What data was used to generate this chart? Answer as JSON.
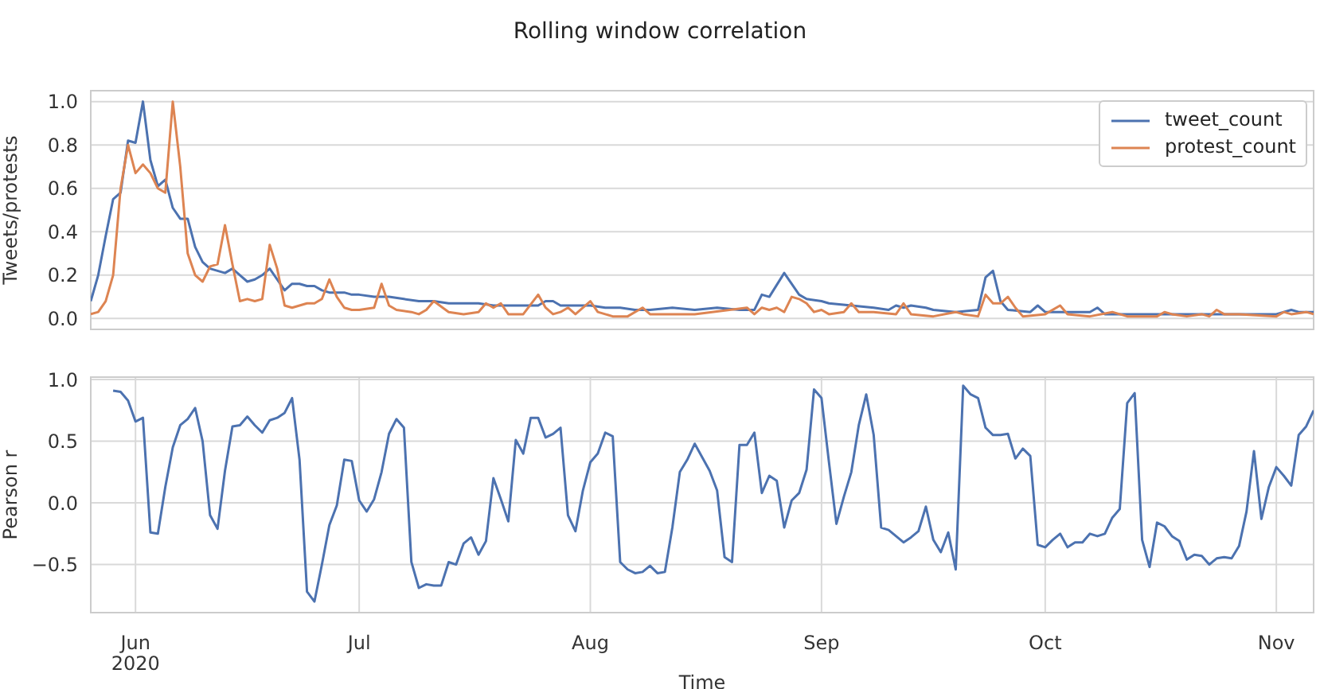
{
  "chart_data": [
    {
      "type": "line",
      "title": "Rolling window correlation",
      "ylabel": "Tweets/protests",
      "xlim": [
        "2020-05-26",
        "2020-11-06"
      ],
      "xticks": [
        {
          "value": "2020-06-01",
          "label": null
        },
        {
          "value": "2020-07-01",
          "label": null
        },
        {
          "value": "2020-08-01",
          "label": null
        },
        {
          "value": "2020-09-01",
          "label": null
        },
        {
          "value": "2020-10-01",
          "label": null
        },
        {
          "value": "2020-11-01",
          "label": null
        }
      ],
      "ylim": [
        -0.05,
        1.05
      ],
      "yticks": [
        {
          "value": 0,
          "label": "0.0"
        },
        {
          "value": 0.2,
          "label": "0.2"
        },
        {
          "value": 0.4,
          "label": "0.4"
        },
        {
          "value": 0.6,
          "label": "0.6"
        },
        {
          "value": 0.8,
          "label": "0.8"
        },
        {
          "value": 1,
          "label": "1.0"
        }
      ],
      "grid": true,
      "legend": "top right",
      "tick_labels": "y",
      "series": [
        {
          "name": "tweet_count",
          "color": "#4c72b0",
          "x": [
            "2020-05-26",
            "2020-05-27",
            "2020-05-28",
            "2020-05-29",
            "2020-05-30",
            "2020-05-31",
            "2020-06-01",
            "2020-06-02",
            "2020-06-03",
            "2020-06-04",
            "2020-06-05",
            "2020-06-06",
            "2020-06-07",
            "2020-06-08",
            "2020-06-09",
            "2020-06-10",
            "2020-06-11",
            "2020-06-12",
            "2020-06-13",
            "2020-06-14",
            "2020-06-15",
            "2020-06-16",
            "2020-06-17",
            "2020-06-18",
            "2020-06-19",
            "2020-06-20",
            "2020-06-21",
            "2020-06-22",
            "2020-06-23",
            "2020-06-24",
            "2020-06-25",
            "2020-06-26",
            "2020-06-27",
            "2020-06-28",
            "2020-06-29",
            "2020-06-30",
            "2020-07-01",
            "2020-07-03",
            "2020-07-05",
            "2020-07-07",
            "2020-07-09",
            "2020-07-11",
            "2020-07-13",
            "2020-07-15",
            "2020-07-17",
            "2020-07-19",
            "2020-07-21",
            "2020-07-23",
            "2020-07-25",
            "2020-07-26",
            "2020-07-27",
            "2020-07-28",
            "2020-07-30",
            "2020-08-01",
            "2020-08-03",
            "2020-08-05",
            "2020-08-07",
            "2020-08-09",
            "2020-08-12",
            "2020-08-15",
            "2020-08-18",
            "2020-08-21",
            "2020-08-23",
            "2020-08-24",
            "2020-08-25",
            "2020-08-27",
            "2020-08-29",
            "2020-08-30",
            "2020-09-01",
            "2020-09-02",
            "2020-09-05",
            "2020-09-08",
            "2020-09-10",
            "2020-09-11",
            "2020-09-12",
            "2020-09-13",
            "2020-09-15",
            "2020-09-16",
            "2020-09-19",
            "2020-09-22",
            "2020-09-23",
            "2020-09-24",
            "2020-09-25",
            "2020-09-26",
            "2020-09-29",
            "2020-09-30",
            "2020-10-01",
            "2020-10-04",
            "2020-10-07",
            "2020-10-08",
            "2020-10-09",
            "2020-10-20",
            "2020-11-01",
            "2020-11-03",
            "2020-11-04",
            "2020-11-06"
          ],
          "values": [
            0.08,
            0.2,
            0.38,
            0.55,
            0.58,
            0.82,
            0.81,
            1.0,
            0.73,
            0.61,
            0.64,
            0.51,
            0.46,
            0.46,
            0.33,
            0.26,
            0.23,
            0.22,
            0.21,
            0.23,
            0.2,
            0.17,
            0.18,
            0.2,
            0.23,
            0.18,
            0.13,
            0.16,
            0.16,
            0.15,
            0.15,
            0.13,
            0.12,
            0.12,
            0.12,
            0.11,
            0.11,
            0.1,
            0.1,
            0.09,
            0.08,
            0.08,
            0.07,
            0.07,
            0.07,
            0.06,
            0.06,
            0.06,
            0.06,
            0.08,
            0.08,
            0.06,
            0.06,
            0.06,
            0.05,
            0.05,
            0.04,
            0.04,
            0.05,
            0.04,
            0.05,
            0.04,
            0.04,
            0.11,
            0.1,
            0.21,
            0.11,
            0.09,
            0.08,
            0.07,
            0.06,
            0.05,
            0.04,
            0.06,
            0.05,
            0.06,
            0.05,
            0.04,
            0.03,
            0.04,
            0.19,
            0.22,
            0.08,
            0.04,
            0.03,
            0.06,
            0.03,
            0.03,
            0.03,
            0.05,
            0.02,
            0.02,
            0.02,
            0.04,
            0.03,
            0.03
          ]
        },
        {
          "name": "protest_count",
          "color": "#dd8452",
          "x": [
            "2020-05-26",
            "2020-05-27",
            "2020-05-28",
            "2020-05-29",
            "2020-05-30",
            "2020-05-31",
            "2020-06-01",
            "2020-06-02",
            "2020-06-03",
            "2020-06-04",
            "2020-06-05",
            "2020-06-06",
            "2020-06-07",
            "2020-06-08",
            "2020-06-09",
            "2020-06-10",
            "2020-06-11",
            "2020-06-12",
            "2020-06-13",
            "2020-06-14",
            "2020-06-15",
            "2020-06-16",
            "2020-06-17",
            "2020-06-18",
            "2020-06-19",
            "2020-06-20",
            "2020-06-21",
            "2020-06-22",
            "2020-06-23",
            "2020-06-24",
            "2020-06-25",
            "2020-06-26",
            "2020-06-27",
            "2020-06-28",
            "2020-06-29",
            "2020-06-30",
            "2020-07-01",
            "2020-07-03",
            "2020-07-04",
            "2020-07-05",
            "2020-07-06",
            "2020-07-08",
            "2020-07-09",
            "2020-07-10",
            "2020-07-11",
            "2020-07-13",
            "2020-07-15",
            "2020-07-17",
            "2020-07-18",
            "2020-07-19",
            "2020-07-20",
            "2020-07-21",
            "2020-07-23",
            "2020-07-25",
            "2020-07-26",
            "2020-07-27",
            "2020-07-28",
            "2020-07-29",
            "2020-07-30",
            "2020-08-01",
            "2020-08-02",
            "2020-08-04",
            "2020-08-06",
            "2020-08-08",
            "2020-08-09",
            "2020-08-12",
            "2020-08-15",
            "2020-08-22",
            "2020-08-23",
            "2020-08-24",
            "2020-08-25",
            "2020-08-26",
            "2020-08-27",
            "2020-08-28",
            "2020-08-29",
            "2020-08-30",
            "2020-08-31",
            "2020-09-01",
            "2020-09-02",
            "2020-09-04",
            "2020-09-05",
            "2020-09-06",
            "2020-09-08",
            "2020-09-11",
            "2020-09-12",
            "2020-09-13",
            "2020-09-16",
            "2020-09-19",
            "2020-09-20",
            "2020-09-22",
            "2020-09-23",
            "2020-09-24",
            "2020-09-25",
            "2020-09-26",
            "2020-09-27",
            "2020-09-28",
            "2020-10-01",
            "2020-10-03",
            "2020-10-04",
            "2020-10-07",
            "2020-10-10",
            "2020-10-12",
            "2020-10-16",
            "2020-10-17",
            "2020-10-18",
            "2020-10-20",
            "2020-10-22",
            "2020-10-23",
            "2020-10-24",
            "2020-10-25",
            "2020-10-27",
            "2020-11-01",
            "2020-11-02",
            "2020-11-03",
            "2020-11-05",
            "2020-11-06"
          ],
          "values": [
            0.02,
            0.03,
            0.08,
            0.2,
            0.6,
            0.8,
            0.67,
            0.71,
            0.67,
            0.6,
            0.58,
            1.0,
            0.7,
            0.3,
            0.2,
            0.17,
            0.24,
            0.25,
            0.43,
            0.25,
            0.08,
            0.09,
            0.08,
            0.09,
            0.34,
            0.23,
            0.06,
            0.05,
            0.06,
            0.07,
            0.07,
            0.09,
            0.18,
            0.1,
            0.05,
            0.04,
            0.04,
            0.05,
            0.16,
            0.06,
            0.04,
            0.03,
            0.02,
            0.04,
            0.08,
            0.03,
            0.02,
            0.03,
            0.07,
            0.05,
            0.07,
            0.02,
            0.02,
            0.11,
            0.05,
            0.02,
            0.03,
            0.05,
            0.02,
            0.08,
            0.03,
            0.01,
            0.01,
            0.05,
            0.02,
            0.02,
            0.02,
            0.05,
            0.02,
            0.05,
            0.04,
            0.05,
            0.03,
            0.1,
            0.09,
            0.07,
            0.03,
            0.04,
            0.02,
            0.03,
            0.07,
            0.03,
            0.03,
            0.02,
            0.07,
            0.02,
            0.01,
            0.03,
            0.02,
            0.01,
            0.11,
            0.07,
            0.07,
            0.1,
            0.05,
            0.01,
            0.02,
            0.06,
            0.02,
            0.01,
            0.03,
            0.01,
            0.01,
            0.03,
            0.02,
            0.01,
            0.02,
            0.01,
            0.04,
            0.02,
            0.02,
            0.01,
            0.03,
            0.02,
            0.03,
            0.02
          ]
        }
      ]
    },
    {
      "type": "line",
      "xlabel": "Time",
      "ylabel": "Pearson r",
      "xlim": [
        "2020-05-26",
        "2020-11-06"
      ],
      "xticks": [
        {
          "value": "2020-06-01",
          "label": "Jun\n2020"
        },
        {
          "value": "2020-07-01",
          "label": "Jul"
        },
        {
          "value": "2020-08-01",
          "label": "Aug"
        },
        {
          "value": "2020-09-01",
          "label": "Sep"
        },
        {
          "value": "2020-10-01",
          "label": "Oct"
        },
        {
          "value": "2020-11-01",
          "label": "Nov"
        }
      ],
      "ylim": [
        -0.89,
        1.02
      ],
      "yticks": [
        {
          "value": -0.5,
          "label": "−0.5"
        },
        {
          "value": 0,
          "label": "0.0"
        },
        {
          "value": 0.5,
          "label": "0.5"
        },
        {
          "value": 1,
          "label": "1.0"
        }
      ],
      "grid": true,
      "series": [
        {
          "color": "#4c72b0",
          "x": [
            "2020-05-29",
            "2020-05-30",
            "2020-05-31",
            "2020-06-01",
            "2020-06-02",
            "2020-06-03",
            "2020-06-04",
            "2020-06-05",
            "2020-06-06",
            "2020-06-07",
            "2020-06-08",
            "2020-06-09",
            "2020-06-10",
            "2020-06-11",
            "2020-06-12",
            "2020-06-13",
            "2020-06-14",
            "2020-06-15",
            "2020-06-16",
            "2020-06-17",
            "2020-06-18",
            "2020-06-19",
            "2020-06-20",
            "2020-06-21",
            "2020-06-22",
            "2020-06-23",
            "2020-06-24",
            "2020-06-25",
            "2020-06-26",
            "2020-06-27",
            "2020-06-28",
            "2020-06-29",
            "2020-06-30",
            "2020-07-01",
            "2020-07-02",
            "2020-07-03",
            "2020-07-04",
            "2020-07-05",
            "2020-07-06",
            "2020-07-07",
            "2020-07-08",
            "2020-07-09",
            "2020-07-10",
            "2020-07-11",
            "2020-07-12",
            "2020-07-13",
            "2020-07-14",
            "2020-07-15",
            "2020-07-16",
            "2020-07-17",
            "2020-07-18",
            "2020-07-19",
            "2020-07-20",
            "2020-07-21",
            "2020-07-22",
            "2020-07-23",
            "2020-07-24",
            "2020-07-25",
            "2020-07-26",
            "2020-07-27",
            "2020-07-28",
            "2020-07-29",
            "2020-07-30",
            "2020-07-31",
            "2020-08-01",
            "2020-08-02",
            "2020-08-03",
            "2020-08-04",
            "2020-08-05",
            "2020-08-06",
            "2020-08-07",
            "2020-08-08",
            "2020-08-09",
            "2020-08-10",
            "2020-08-11",
            "2020-08-12",
            "2020-08-13",
            "2020-08-14",
            "2020-08-15",
            "2020-08-16",
            "2020-08-17",
            "2020-08-18",
            "2020-08-19",
            "2020-08-20",
            "2020-08-21",
            "2020-08-22",
            "2020-08-23",
            "2020-08-24",
            "2020-08-25",
            "2020-08-26",
            "2020-08-27",
            "2020-08-28",
            "2020-08-29",
            "2020-08-30",
            "2020-08-31",
            "2020-09-01",
            "2020-09-02",
            "2020-09-03",
            "2020-09-04",
            "2020-09-05",
            "2020-09-06",
            "2020-09-07",
            "2020-09-08",
            "2020-09-09",
            "2020-09-10",
            "2020-09-11",
            "2020-09-12",
            "2020-09-13",
            "2020-09-14",
            "2020-09-15",
            "2020-09-16",
            "2020-09-17",
            "2020-09-18",
            "2020-09-19",
            "2020-09-20",
            "2020-09-21",
            "2020-09-22",
            "2020-09-23",
            "2020-09-24",
            "2020-09-25",
            "2020-09-26",
            "2020-09-27",
            "2020-09-28",
            "2020-09-29",
            "2020-09-30",
            "2020-10-01",
            "2020-10-02",
            "2020-10-03",
            "2020-10-04",
            "2020-10-05",
            "2020-10-06",
            "2020-10-07",
            "2020-10-08",
            "2020-10-09",
            "2020-10-10",
            "2020-10-11",
            "2020-10-12",
            "2020-10-13",
            "2020-10-14",
            "2020-10-15",
            "2020-10-16",
            "2020-10-17",
            "2020-10-18",
            "2020-10-19",
            "2020-10-20",
            "2020-10-21",
            "2020-10-22",
            "2020-10-23",
            "2020-10-24",
            "2020-10-25",
            "2020-10-26",
            "2020-10-27",
            "2020-10-28",
            "2020-10-29",
            "2020-10-30",
            "2020-10-31",
            "2020-11-01",
            "2020-11-02",
            "2020-11-03",
            "2020-11-04",
            "2020-11-05",
            "2020-11-06"
          ],
          "values": [
            0.91,
            0.9,
            0.83,
            0.66,
            0.69,
            -0.24,
            -0.25,
            0.13,
            0.45,
            0.63,
            0.68,
            0.77,
            0.5,
            -0.1,
            -0.21,
            0.26,
            0.62,
            0.63,
            0.7,
            0.63,
            0.57,
            0.67,
            0.69,
            0.73,
            0.85,
            0.35,
            -0.72,
            -0.8,
            -0.5,
            -0.18,
            -0.02,
            0.35,
            0.34,
            0.02,
            -0.07,
            0.03,
            0.25,
            0.56,
            0.68,
            0.61,
            -0.48,
            -0.69,
            -0.66,
            -0.67,
            -0.67,
            -0.48,
            -0.5,
            -0.33,
            -0.28,
            -0.42,
            -0.31,
            0.2,
            0.03,
            -0.15,
            0.51,
            0.4,
            0.69,
            0.69,
            0.53,
            0.56,
            0.61,
            -0.1,
            -0.23,
            0.1,
            0.33,
            0.4,
            0.57,
            0.54,
            -0.48,
            -0.54,
            -0.57,
            -0.56,
            -0.51,
            -0.57,
            -0.56,
            -0.2,
            0.25,
            0.35,
            0.48,
            0.37,
            0.26,
            0.1,
            -0.44,
            -0.48,
            0.47,
            0.47,
            0.57,
            0.08,
            0.22,
            0.18,
            -0.2,
            0.02,
            0.08,
            0.27,
            0.92,
            0.85,
            0.33,
            -0.17,
            0.05,
            0.25,
            0.63,
            0.88,
            0.55,
            -0.2,
            -0.22,
            -0.27,
            -0.32,
            -0.28,
            -0.23,
            -0.03,
            -0.3,
            -0.4,
            -0.24,
            -0.54,
            0.95,
            0.88,
            0.85,
            0.61,
            0.55,
            0.55,
            0.56,
            0.36,
            0.44,
            0.38,
            -0.34,
            -0.36,
            -0.3,
            -0.25,
            -0.36,
            -0.32,
            -0.32,
            -0.25,
            -0.27,
            -0.25,
            -0.12,
            -0.05,
            0.81,
            0.89,
            -0.3,
            -0.52,
            -0.16,
            -0.19,
            -0.27,
            -0.31,
            -0.46,
            -0.42,
            -0.43,
            -0.5,
            -0.45,
            -0.44,
            -0.45,
            -0.35,
            -0.07,
            0.42,
            -0.13,
            0.13,
            0.29,
            0.22,
            0.14,
            0.55,
            0.62,
            0.75
          ]
        }
      ]
    }
  ]
}
